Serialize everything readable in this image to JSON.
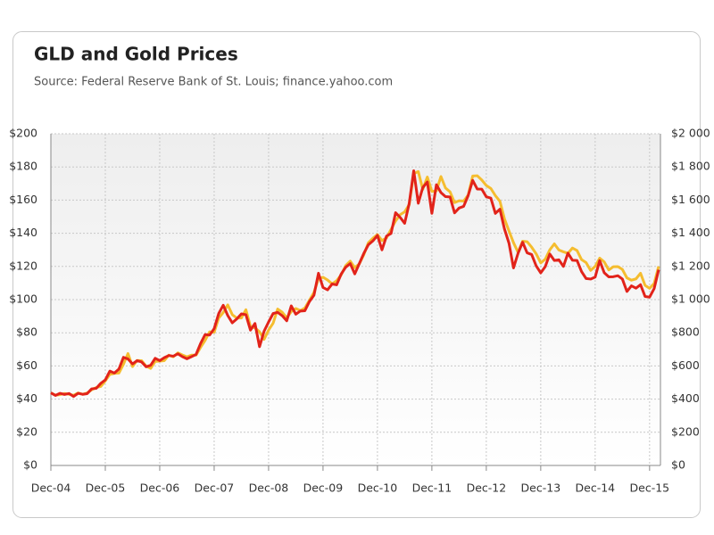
{
  "chart_data": {
    "type": "line",
    "title": "GLD and Gold Prices",
    "subtitle": "Source: Federal Reserve Bank of St. Louis; finance.yahoo.com",
    "categories": [
      "Dec-04",
      null,
      null,
      null,
      null,
      null,
      null,
      null,
      null,
      null,
      null,
      null,
      "Dec-05",
      null,
      null,
      null,
      null,
      null,
      null,
      null,
      null,
      null,
      null,
      null,
      "Dec-06",
      null,
      null,
      null,
      null,
      null,
      null,
      null,
      null,
      null,
      null,
      null,
      "Dec-07",
      null,
      null,
      null,
      null,
      null,
      null,
      null,
      null,
      null,
      null,
      null,
      "Dec-08",
      null,
      null,
      null,
      null,
      null,
      null,
      null,
      null,
      null,
      null,
      null,
      "Dec-09",
      null,
      null,
      null,
      null,
      null,
      null,
      null,
      null,
      null,
      null,
      null,
      "Dec-10",
      null,
      null,
      null,
      null,
      null,
      null,
      null,
      null,
      null,
      null,
      null,
      "Dec-11",
      null,
      null,
      null,
      null,
      null,
      null,
      null,
      null,
      null,
      null,
      null,
      "Dec-12",
      null,
      null,
      null,
      null,
      null,
      null,
      null,
      null,
      null,
      null,
      null,
      "Dec-13",
      null,
      null,
      null,
      null,
      null,
      null,
      null,
      null,
      null,
      null,
      null,
      "Dec-14",
      null,
      null,
      null,
      null,
      null,
      null,
      null,
      null,
      null,
      null,
      null,
      "Dec-15",
      null,
      null
    ],
    "series": [
      {
        "color": "#e2231a",
        "values": [
          43.8,
          42.2,
          43.5,
          42.8,
          43.4,
          41.6,
          43.5,
          42.9,
          43.3,
          46.2,
          46.5,
          49.5,
          51.6,
          56.9,
          55.7,
          58.1,
          65.2,
          64.2,
          61.2,
          63.2,
          62.4,
          59.5,
          60.4,
          64.6,
          63.2,
          65.0,
          66.3,
          65.9,
          67.3,
          65.6,
          64.3,
          65.6,
          66.9,
          73.5,
          78.9,
          78.6,
          82.5,
          91.6,
          96.6,
          90.4,
          86.0,
          88.4,
          91.4,
          90.9,
          81.6,
          85.6,
          71.6,
          80.9,
          86.5,
          91.6,
          92.3,
          90.3,
          87.2,
          96.2,
          91.2,
          93.1,
          93.3,
          98.8,
          102.6,
          115.9,
          107.3,
          105.9,
          109.4,
          108.9,
          115.4,
          119.5,
          121.7,
          115.5,
          121.7,
          127.9,
          133.1,
          135.4,
          138.7,
          130.0,
          138.3,
          139.9,
          152.4,
          149.6,
          146.0,
          158.0,
          177.7,
          158.1,
          167.6,
          170.9,
          152.0,
          169.3,
          164.5,
          162.1,
          161.9,
          152.3,
          155.2,
          156.2,
          162.7,
          171.9,
          166.7,
          166.6,
          162.0,
          161.2,
          152.0,
          154.5,
          142.6,
          134.0,
          119.1,
          127.9,
          134.6,
          128.2,
          127.2,
          120.3,
          116.1,
          119.9,
          127.5,
          123.6,
          124.0,
          120.0,
          128.0,
          123.7,
          123.6,
          116.9,
          112.7,
          112.4,
          113.6,
          123.5,
          116.2,
          113.7,
          113.8,
          114.4,
          112.4,
          104.9,
          108.3,
          106.9,
          109.0,
          101.9,
          101.5,
          106.6,
          118.0
        ]
      },
      {
        "color": "#f5bd2f",
        "axis": "y2",
        "values": [
          438,
          424,
          427,
          434,
          429,
          423,
          437,
          429,
          437,
          456,
          470,
          476,
          510,
          549,
          555,
          557,
          610,
          675,
          596,
          633,
          632,
          599,
          585,
          627,
          629,
          632,
          665,
          655,
          679,
          666,
          655,
          665,
          665,
          712,
          754,
          806,
          803,
          889,
          922,
          968,
          909,
          889,
          889,
          939,
          839,
          829,
          806,
          760,
          816,
          858,
          943,
          924,
          890,
          928,
          946,
          934,
          949,
          996,
          1043,
          1127,
          1135,
          1118,
          1095,
          1114,
          1149,
          1205,
          1232,
          1193,
          1215,
          1271,
          1343,
          1370,
          1392,
          1356,
          1372,
          1424,
          1474,
          1512,
          1529,
          1572,
          1759,
          1772,
          1665,
          1739,
          1652,
          1656,
          1742,
          1673,
          1650,
          1585,
          1596,
          1594,
          1630,
          1745,
          1747,
          1721,
          1688,
          1670,
          1627,
          1593,
          1487,
          1414,
          1343,
          1285,
          1352,
          1349,
          1316,
          1276,
          1221,
          1244,
          1300,
          1336,
          1299,
          1288,
          1279,
          1311,
          1296,
          1241,
          1223,
          1176,
          1200,
          1250,
          1227,
          1179,
          1198,
          1199,
          1182,
          1131,
          1117,
          1125,
          1159,
          1086,
          1068,
          1097,
          1200
        ]
      }
    ],
    "ylim": [
      0,
      200
    ],
    "yticks": [
      {
        "value": 0,
        "label": "$0"
      },
      {
        "value": 20,
        "label": "$20"
      },
      {
        "value": 40,
        "label": "$40"
      },
      {
        "value": 60,
        "label": "$60"
      },
      {
        "value": 80,
        "label": "$80"
      },
      {
        "value": 100,
        "label": "$100"
      },
      {
        "value": 120,
        "label": "$120"
      },
      {
        "value": 140,
        "label": "$140"
      },
      {
        "value": 160,
        "label": "$160"
      },
      {
        "value": 180,
        "label": "$180"
      },
      {
        "value": 200,
        "label": "$200"
      }
    ],
    "y2lim": [
      0,
      2000
    ],
    "y2ticks": [
      {
        "value": 0,
        "label": "$0"
      },
      {
        "value": 200,
        "label": "$200"
      },
      {
        "value": 400,
        "label": "$400"
      },
      {
        "value": 600,
        "label": "$600"
      },
      {
        "value": 800,
        "label": "$800"
      },
      {
        "value": 1000,
        "label": "$1 000"
      },
      {
        "value": 1200,
        "label": "$1 200"
      },
      {
        "value": 1400,
        "label": "$1 400"
      },
      {
        "value": 1600,
        "label": "$1 600"
      },
      {
        "value": 1800,
        "label": "$1 800"
      },
      {
        "value": 2000,
        "label": "$2 000"
      }
    ],
    "grid": true
  }
}
